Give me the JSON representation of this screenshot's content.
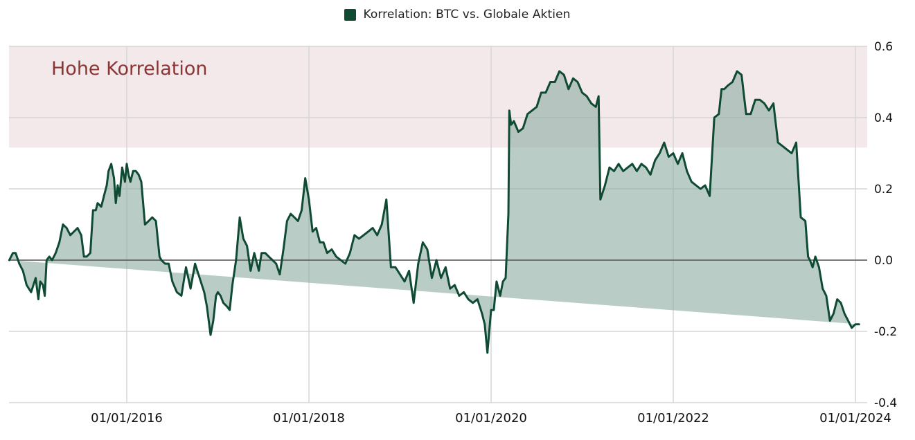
{
  "legend": {
    "label": "Korrelation: BTC vs. Globale Aktien",
    "color": "#0f4a33"
  },
  "band": {
    "label": "Hohe Korrelation",
    "from": 0.316,
    "to": 0.6,
    "fill": "#f3e8ea",
    "label_color": "#8c3535"
  },
  "colors": {
    "line": "#0f4a33",
    "area_fill": "#8eaea3",
    "area_opacity": 0.62,
    "grid": "#d6d6d6",
    "zero_line": "#555555"
  },
  "chart_data": {
    "type": "area",
    "title": "",
    "legend": [
      "Korrelation: BTC vs. Globale Aktien"
    ],
    "legend_position": "top",
    "xlabel": "",
    "ylabel": "",
    "ylim": [
      -0.4,
      0.6
    ],
    "yticks": [
      "0.6",
      "0.4",
      "0.2",
      "0.0",
      "-0.2",
      "-0.4"
    ],
    "ytick_values": [
      0.6,
      0.4,
      0.2,
      0.0,
      -0.2,
      -0.4
    ],
    "xticks": [
      "01/01/2016",
      "01/01/2018",
      "01/01/2020",
      "01/01/2022",
      "01/01/2024"
    ],
    "xtick_years": [
      2016,
      2018,
      2020,
      2022,
      2024
    ],
    "xlim_years": [
      2014.71,
      2024.13
    ],
    "grid": true,
    "y_axis_position": "right",
    "annotations": [
      {
        "text": "Hohe Korrelation",
        "type": "shaded_band",
        "y_range": [
          0.316,
          0.6
        ]
      }
    ],
    "series": [
      {
        "name": "Korrelation: BTC vs. Globale Aktien",
        "x_years": [
          2014.71,
          2014.75,
          2014.78,
          2014.82,
          2014.86,
          2014.9,
          2014.95,
          2015.0,
          2015.03,
          2015.05,
          2015.08,
          2015.1,
          2015.12,
          2015.15,
          2015.18,
          2015.22,
          2015.26,
          2015.3,
          2015.34,
          2015.38,
          2015.42,
          2015.46,
          2015.5,
          2015.53,
          2015.56,
          2015.6,
          2015.63,
          2015.66,
          2015.68,
          2015.72,
          2015.75,
          2015.78,
          2015.8,
          2015.83,
          2015.86,
          2015.88,
          2015.9,
          2015.92,
          2015.95,
          2015.98,
          2016.0,
          2016.02,
          2016.04,
          2016.07,
          2016.1,
          2016.13,
          2016.16,
          2016.2,
          2016.24,
          2016.28,
          2016.32,
          2016.36,
          2016.38,
          2016.42,
          2016.46,
          2016.5,
          2016.55,
          2016.6,
          2016.65,
          2016.7,
          2016.75,
          2016.8,
          2016.85,
          2016.88,
          2016.92,
          2016.95,
          2016.98,
          2017.0,
          2017.03,
          2017.06,
          2017.1,
          2017.13,
          2017.16,
          2017.2,
          2017.24,
          2017.28,
          2017.32,
          2017.36,
          2017.4,
          2017.45,
          2017.48,
          2017.52,
          2017.56,
          2017.6,
          2017.64,
          2017.68,
          2017.72,
          2017.76,
          2017.8,
          2017.84,
          2017.88,
          2017.92,
          2017.96,
          2018.0,
          2018.04,
          2018.08,
          2018.12,
          2018.16,
          2018.2,
          2018.25,
          2018.3,
          2018.35,
          2018.4,
          2018.45,
          2018.5,
          2018.55,
          2018.6,
          2018.65,
          2018.7,
          2018.75,
          2018.8,
          2018.85,
          2018.9,
          2018.95,
          2019.0,
          2019.05,
          2019.1,
          2019.15,
          2019.2,
          2019.25,
          2019.3,
          2019.35,
          2019.4,
          2019.45,
          2019.5,
          2019.55,
          2019.6,
          2019.65,
          2019.7,
          2019.75,
          2019.8,
          2019.85,
          2019.9,
          2019.93,
          2019.96,
          2020.0,
          2020.03,
          2020.06,
          2020.1,
          2020.13,
          2020.16,
          2020.19,
          2020.2,
          2020.22,
          2020.25,
          2020.3,
          2020.35,
          2020.4,
          2020.45,
          2020.5,
          2020.55,
          2020.6,
          2020.65,
          2020.7,
          2020.75,
          2020.8,
          2020.85,
          2020.9,
          2020.95,
          2021.0,
          2021.05,
          2021.1,
          2021.15,
          2021.18,
          2021.2,
          2021.25,
          2021.3,
          2021.35,
          2021.4,
          2021.45,
          2021.5,
          2021.55,
          2021.6,
          2021.65,
          2021.7,
          2021.75,
          2021.8,
          2021.85,
          2021.9,
          2021.95,
          2022.0,
          2022.05,
          2022.1,
          2022.15,
          2022.2,
          2022.25,
          2022.3,
          2022.35,
          2022.4,
          2022.45,
          2022.5,
          2022.53,
          2022.56,
          2022.6,
          2022.65,
          2022.7,
          2022.75,
          2022.8,
          2022.85,
          2022.9,
          2022.95,
          2023.0,
          2023.05,
          2023.1,
          2023.15,
          2023.2,
          2023.25,
          2023.3,
          2023.35,
          2023.4,
          2023.45,
          2023.48,
          2023.5,
          2023.53,
          2023.56,
          2023.6,
          2023.64,
          2023.68,
          2023.72,
          2023.76,
          2023.8,
          2023.84,
          2023.88,
          2023.92,
          2023.96,
          2024.0,
          2024.04,
          2024.08,
          2024.13
        ],
        "values": [
          0.0,
          0.02,
          0.02,
          -0.01,
          -0.03,
          -0.07,
          -0.09,
          -0.05,
          -0.11,
          -0.06,
          -0.07,
          -0.1,
          0.0,
          0.01,
          0.0,
          0.02,
          0.05,
          0.1,
          0.09,
          0.07,
          0.08,
          0.09,
          0.07,
          0.01,
          0.01,
          0.02,
          0.14,
          0.14,
          0.16,
          0.15,
          0.18,
          0.21,
          0.25,
          0.27,
          0.23,
          0.16,
          0.21,
          0.18,
          0.26,
          0.22,
          0.27,
          0.24,
          0.22,
          0.25,
          0.25,
          0.24,
          0.22,
          0.1,
          0.11,
          0.12,
          0.11,
          0.01,
          0.0,
          -0.01,
          -0.01,
          -0.06,
          -0.09,
          -0.1,
          -0.02,
          -0.08,
          -0.01,
          -0.05,
          -0.09,
          -0.13,
          -0.21,
          -0.17,
          -0.1,
          -0.09,
          -0.1,
          -0.12,
          -0.13,
          -0.14,
          -0.07,
          0.0,
          0.12,
          0.06,
          0.04,
          -0.03,
          0.02,
          -0.03,
          0.02,
          0.02,
          0.01,
          0.0,
          -0.01,
          -0.04,
          0.03,
          0.11,
          0.13,
          0.12,
          0.11,
          0.14,
          0.23,
          0.17,
          0.08,
          0.09,
          0.05,
          0.05,
          0.02,
          0.03,
          0.01,
          0.0,
          -0.01,
          0.02,
          0.07,
          0.06,
          0.07,
          0.08,
          0.09,
          0.07,
          0.1,
          0.17,
          -0.02,
          -0.02,
          -0.04,
          -0.06,
          -0.03,
          -0.12,
          -0.01,
          0.05,
          0.03,
          -0.05,
          0.0,
          -0.05,
          -0.02,
          -0.08,
          -0.07,
          -0.1,
          -0.09,
          -0.11,
          -0.12,
          -0.11,
          -0.15,
          -0.18,
          -0.26,
          -0.14,
          -0.14,
          -0.06,
          -0.1,
          -0.06,
          -0.05,
          0.13,
          0.42,
          0.38,
          0.39,
          0.36,
          0.37,
          0.41,
          0.42,
          0.43,
          0.47,
          0.47,
          0.5,
          0.5,
          0.53,
          0.52,
          0.48,
          0.51,
          0.5,
          0.47,
          0.46,
          0.44,
          0.43,
          0.46,
          0.17,
          0.21,
          0.26,
          0.25,
          0.27,
          0.25,
          0.26,
          0.27,
          0.25,
          0.27,
          0.26,
          0.24,
          0.28,
          0.3,
          0.33,
          0.29,
          0.3,
          0.27,
          0.3,
          0.25,
          0.22,
          0.21,
          0.2,
          0.21,
          0.18,
          0.4,
          0.41,
          0.48,
          0.48,
          0.49,
          0.5,
          0.53,
          0.52,
          0.41,
          0.41,
          0.45,
          0.45,
          0.44,
          0.42,
          0.44,
          0.33,
          0.32,
          0.31,
          0.3,
          0.33,
          0.12,
          0.11,
          0.01,
          0.0,
          -0.02,
          0.01,
          -0.02,
          -0.08,
          -0.1,
          -0.17,
          -0.15,
          -0.11,
          -0.12,
          -0.15,
          -0.17,
          -0.19,
          -0.18,
          -0.18
        ]
      }
    ]
  }
}
